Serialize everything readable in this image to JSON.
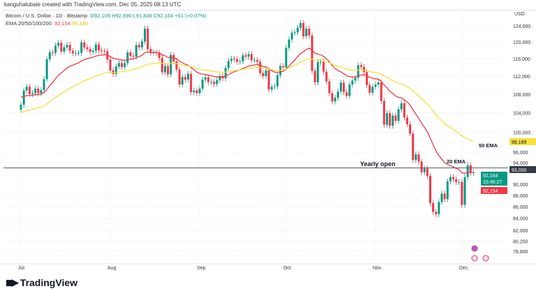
{
  "credit": "kanguhalubale created with TradingView.com, Dec 05, 2025 08:13 UTC",
  "legend": {
    "symbol": "Bitcoin / U.S. Dollar · 1D · Bitstamp",
    "o": "O92,109",
    "h": "H92,690",
    "l": "L91,838",
    "c": "C92,164",
    "change": "+61 (+0.07%)",
    "ema_label": "EMA 20/50/100/200",
    "ema20": "92,154",
    "ema50": "98,189"
  },
  "logo": "TradingView",
  "colors": {
    "up": "#089981",
    "down": "#f23645",
    "ema20": "#f23645",
    "ema50": "#f5e13a",
    "yearly_open": "#555555"
  },
  "chart_data": {
    "type": "candlestick",
    "currency": "USD",
    "scale": "log",
    "grid": true,
    "ylim": [
      78600,
      126000
    ],
    "yticks": [
      124000,
      120000,
      116000,
      112000,
      108000,
      104000,
      100000,
      96000,
      94000,
      90000,
      88000,
      86000,
      84000,
      82000,
      80200,
      78600
    ],
    "ytick_labels": [
      "124,000",
      "120,000",
      "116,000",
      "112,000",
      "108,000",
      "104,000",
      "100,000",
      "96,000",
      "94,000",
      "90,000",
      "88,000",
      "86,000",
      "84,000",
      "82,000",
      "80,200",
      "78,600"
    ],
    "xtick_labels": [
      "Jul",
      "Aug",
      "Sep",
      "Oct",
      "Nov",
      "Dec"
    ],
    "start_date": "2025-07-01",
    "close": [
      105700,
      108800,
      109600,
      108000,
      108200,
      109200,
      108200,
      108900,
      111300,
      115900,
      117500,
      117400,
      119100,
      119800,
      117700,
      118700,
      119300,
      117900,
      117300,
      117400,
      117400,
      119900,
      118700,
      118300,
      117600,
      117900,
      119400,
      118000,
      117900,
      117800,
      115800,
      113300,
      112500,
      114200,
      115000,
      114100,
      115000,
      117500,
      116700,
      116500,
      119300,
      118700,
      120100,
      123300,
      118300,
      117400,
      117500,
      117400,
      116200,
      112900,
      114300,
      112400,
      116900,
      115400,
      113500,
      110100,
      111800,
      111200,
      112500,
      108400,
      108800,
      108200,
      109200,
      111200,
      111700,
      110700,
      110700,
      110200,
      111100,
      112000,
      111500,
      113900,
      115500,
      116000,
      115900,
      115300,
      115400,
      116800,
      116500,
      117100,
      115700,
      115700,
      115300,
      112700,
      112000,
      113300,
      109000,
      109600,
      109700,
      112200,
      114300,
      114000,
      118600,
      120600,
      122300,
      122400,
      123500,
      124700,
      121400,
      123300,
      121600,
      113200,
      110600,
      115200,
      115300,
      113000,
      110800,
      108200,
      106400,
      107200,
      108600,
      110500,
      108400,
      107600,
      110100,
      111000,
      111600,
      114500,
      114100,
      112900,
      110000,
      108300,
      109600,
      110100,
      110600,
      106500,
      101500,
      103900,
      101300,
      103400,
      102300,
      104700,
      106000,
      103000,
      101600,
      99700,
      94500,
      95600,
      94200,
      92200,
      92900,
      91500,
      86600,
      85100,
      84700,
      86800,
      88300,
      87300,
      90500,
      91300,
      90900,
      90400,
      90400,
      86300,
      91300,
      93500,
      92100,
      92164
    ],
    "annotations": {
      "yearly_open": {
        "label": "Yearly open",
        "value": 93000,
        "tag": "93,000"
      },
      "ema20": {
        "label": "20 EMA",
        "tag": "92,154"
      },
      "ema50": {
        "label": "50 EMA",
        "tag": "98,189"
      },
      "last_price": {
        "tag": "92,164",
        "countdown": "15:46:27"
      }
    }
  }
}
